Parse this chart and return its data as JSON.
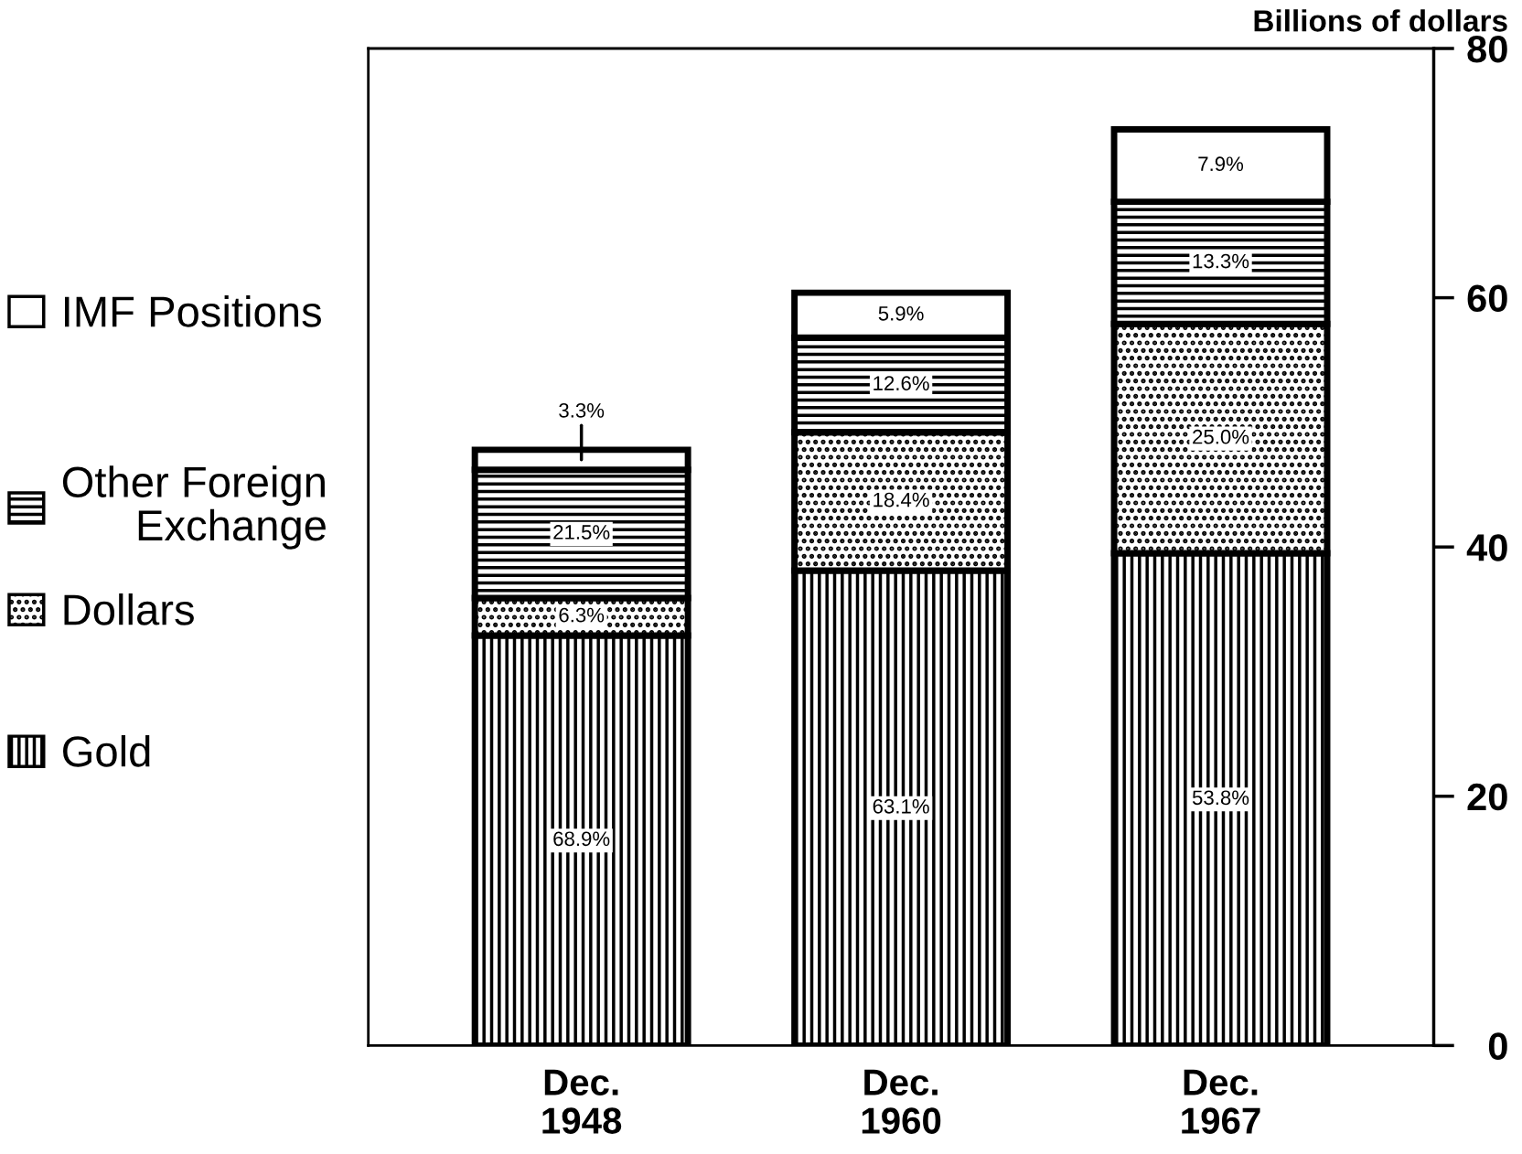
{
  "chart_data": {
    "type": "bar",
    "stacked": true,
    "ylabel": "Billions of dollars",
    "categories": [
      "Dec.\n1948",
      "Dec.\n1960",
      "Dec.\n1967"
    ],
    "series": [
      {
        "name": "Gold",
        "color": "#000000",
        "values": [
          32.9,
          38.1,
          39.5
        ]
      },
      {
        "name": "Dollars",
        "color": "#000000",
        "values": [
          3.0,
          11.1,
          18.4
        ]
      },
      {
        "name": "Other Foreign\nExchange",
        "color": "#000000",
        "values": [
          10.3,
          7.6,
          9.8
        ]
      },
      {
        "name": "IMF Positions",
        "color": "#000000",
        "values": [
          1.6,
          3.6,
          5.8
        ]
      }
    ],
    "annotations": [
      "68.9%",
      "6.3%",
      "21.5%",
      "3.3%",
      "63.1%",
      "18.4%",
      "12.6%",
      "5.9%",
      "53.8%",
      "25.0%",
      "13.3%",
      "7.9%"
    ],
    "ylim": [
      0,
      80
    ],
    "yticks": [
      0,
      20,
      40,
      60,
      80
    ],
    "legend": "left"
  }
}
